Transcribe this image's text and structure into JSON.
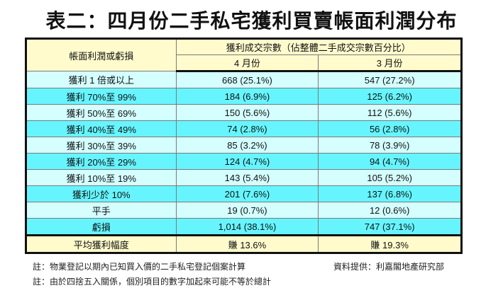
{
  "title": "表二：四月份二手私宅獲利買賣帳面利潤分布",
  "table": {
    "header": {
      "row_label": "帳面利潤或虧損",
      "group_label": "獲利成交宗數（佔整體二手成交宗數百分比）",
      "columns": [
        "4 月份",
        "3 月份"
      ]
    },
    "rows": [
      {
        "label": "獲利 1 倍或以上",
        "apr": "668 (25.1%)",
        "mar": "547 (27.2%)"
      },
      {
        "label": "獲利 70%至 99%",
        "apr": "184 (6.9%)",
        "mar": "125 (6.2%)"
      },
      {
        "label": "獲利 50%至 69%",
        "apr": "150 (5.6%)",
        "mar": "112 (5.6%)"
      },
      {
        "label": "獲利 40%至 49%",
        "apr": "74 (2.8%)",
        "mar": "56 (2.8%)"
      },
      {
        "label": "獲利 30%至 39%",
        "apr": "85 (3.2%)",
        "mar": "78 (3.9%)"
      },
      {
        "label": "獲利 20%至 29%",
        "apr": "124 (4.7%)",
        "mar": "94 (4.7%)"
      },
      {
        "label": "獲利 10%至 19%",
        "apr": "143 (5.4%)",
        "mar": "105 (5.2%)"
      },
      {
        "label": "獲利少於 10%",
        "apr": "201 (7.6%)",
        "mar": "137 (6.8%)"
      },
      {
        "label": "平手",
        "apr": "19 (0.7%)",
        "mar": "12 (0.6%)"
      },
      {
        "label": "虧損",
        "apr": "1,014 (38.1%)",
        "mar": "747 (37.1%)"
      }
    ],
    "summary": {
      "label": "平均獲利幅度",
      "apr": "賺 13.6%",
      "mar": "賺 19.3%"
    }
  },
  "notes": {
    "note1": "註：物業登記以期內已知買入價的二手私宅登記個案計算",
    "note2": "註：由於四捨五入關係，個別項目的數字加起來可能不等於總計",
    "source": "資料提供：利嘉閣地產研究部"
  },
  "colors": {
    "header_bg": "#fffbcc",
    "row_light": "#d4feff",
    "row_cyan": "#66f5ff",
    "border": "#111111"
  }
}
